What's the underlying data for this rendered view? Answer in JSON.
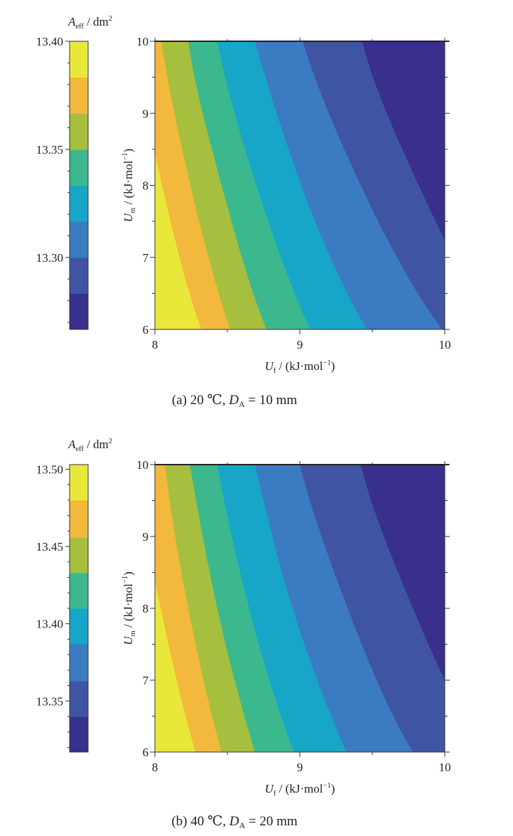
{
  "chart_data": [
    {
      "type": "contour",
      "panel": "a",
      "caption": {
        "prefix": "(a)  20 ℃, ",
        "sym": "D",
        "sub": "A",
        "suffix": " = 10 mm"
      },
      "xlabel": {
        "sym": "U",
        "sub": "f",
        "unit": " / (kJ·mol",
        "sup": "−1",
        "close": ")"
      },
      "ylabel": {
        "sym": "U",
        "sub": "m",
        "unit": " / (kJ·mol",
        "sup": "−1",
        "close": ")"
      },
      "colorbar_title": {
        "sym": "A",
        "sub": "eff",
        "unit": " / dm",
        "sup": "2"
      },
      "xlim": [
        8,
        10
      ],
      "ylim": [
        6,
        10
      ],
      "xticks": [
        "8",
        "9",
        "10"
      ],
      "xtick_values": [
        8,
        9,
        10
      ],
      "yticks": [
        "6",
        "7",
        "8",
        "9",
        "10"
      ],
      "ytick_values": [
        6,
        7,
        8,
        9,
        10
      ],
      "colorbar_range": [
        13.2667,
        13.4
      ],
      "colorbar_ticks": [
        "13.40",
        "13.35",
        "13.30"
      ],
      "colorbar_tick_values": [
        13.4,
        13.35,
        13.3
      ],
      "levels": [
        13.2667,
        13.2833,
        13.3,
        13.3167,
        13.3333,
        13.35,
        13.3667,
        13.3833,
        13.4
      ],
      "band_colors": [
        "#38308c",
        "#3f55a4",
        "#3b7bc1",
        "#17a6c8",
        "#3cb88e",
        "#a6bf3e",
        "#f2b93c",
        "#e9e83a"
      ],
      "contour_um": [
        6,
        7,
        8,
        9,
        10
      ],
      "contour_lines_uf": [
        [
          8.32,
          8.17,
          8.05,
          7.94,
          7.85
        ],
        [
          8.52,
          8.37,
          8.245,
          8.135,
          8.045
        ],
        [
          8.77,
          8.6,
          8.46,
          8.33,
          8.23
        ],
        [
          9.07,
          8.87,
          8.7,
          8.55,
          8.43
        ],
        [
          9.46,
          9.21,
          9.01,
          8.84,
          8.69
        ],
        [
          9.98,
          9.67,
          9.42,
          9.2,
          9.02
        ],
        [
          10.35,
          10.06,
          9.82,
          9.6,
          9.43
        ]
      ]
    },
    {
      "type": "contour",
      "panel": "b",
      "caption": {
        "prefix": "(b)  40 ℃, ",
        "sym": "D",
        "sub": "A",
        "suffix": " = 20 mm"
      },
      "xlabel": {
        "sym": "U",
        "sub": "f",
        "unit": " / (kJ·mol",
        "sup": "−1",
        "close": ")"
      },
      "ylabel": {
        "sym": "U",
        "sub": "m",
        "unit": " / (kJ·mol",
        "sup": "−1",
        "close": ")"
      },
      "colorbar_title": {
        "sym": "A",
        "sub": "eff",
        "unit": " / dm",
        "sup": "2"
      },
      "xlim": [
        8,
        10
      ],
      "ylim": [
        6,
        10
      ],
      "xticks": [
        "8",
        "9",
        "10"
      ],
      "xtick_values": [
        8,
        9,
        10
      ],
      "yticks": [
        "6",
        "7",
        "8",
        "9",
        "10"
      ],
      "ytick_values": [
        6,
        7,
        8,
        9,
        10
      ],
      "colorbar_range": [
        13.317,
        13.503
      ],
      "colorbar_ticks": [
        "13.50",
        "13.45",
        "13.40",
        "13.35"
      ],
      "colorbar_tick_values": [
        13.5,
        13.45,
        13.4,
        13.35
      ],
      "levels": [
        13.317,
        13.34,
        13.363,
        13.387,
        13.41,
        13.433,
        13.456,
        13.48,
        13.503
      ],
      "band_colors": [
        "#38308c",
        "#3f55a4",
        "#3b7bc1",
        "#17a6c8",
        "#3cb88e",
        "#a6bf3e",
        "#f2b93c",
        "#e9e83a"
      ],
      "contour_um": [
        6,
        7,
        8,
        9,
        10
      ],
      "contour_lines_uf": [
        [
          8.28,
          8.15,
          8.04,
          7.94,
          7.86
        ],
        [
          8.46,
          8.335,
          8.23,
          8.14,
          8.07
        ],
        [
          8.69,
          8.55,
          8.43,
          8.33,
          8.24
        ],
        [
          8.96,
          8.79,
          8.65,
          8.53,
          8.43
        ],
        [
          9.32,
          9.12,
          8.95,
          8.81,
          8.69
        ],
        [
          9.78,
          9.53,
          9.33,
          9.15,
          9.0
        ],
        [
          10.27,
          10.0,
          9.78,
          9.58,
          9.42
        ]
      ]
    }
  ]
}
